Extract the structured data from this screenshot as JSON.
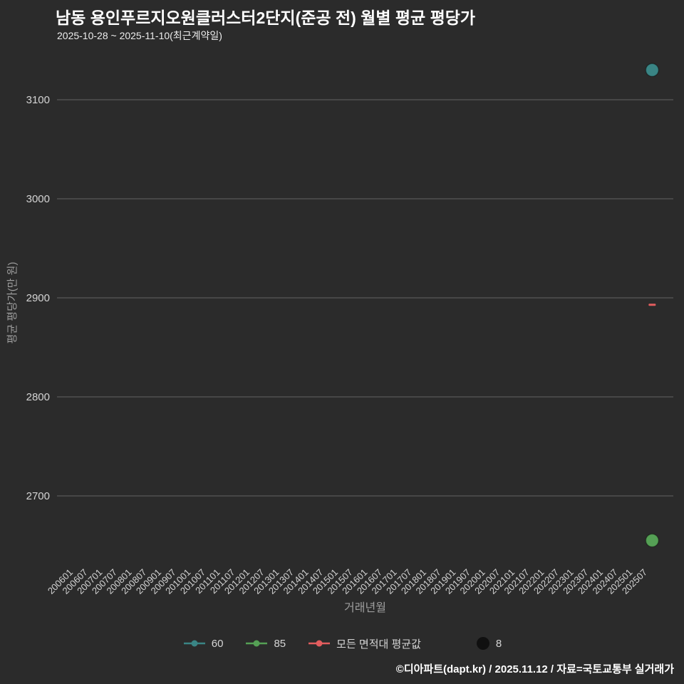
{
  "page": {
    "title": "남동 용인푸르지오원클러스터2단지(준공 전) 월별 평균 평당가",
    "subtitle": "2025-10-28 ~ 2025-11-10(최근계약일)",
    "footer": "©디아파트(dapt.kr) / 2025.11.12 / 자료=국토교통부 실거래가"
  },
  "colors": {
    "background": "#2b2b2b",
    "grid": "#636363",
    "title_text": "#ffffff",
    "tick_text": "#d4d4d4",
    "axis_title_text": "#9e9e9e",
    "series_60": "#3a8585",
    "series_85": "#55a055",
    "series_avg": "#e25d5e",
    "size_dot": "#101010"
  },
  "chart_data": {
    "type": "scatter",
    "title": "남동 용인푸르지오원클러스터2단지(준공 전) 월별 평균 평당가",
    "subtitle": "2025-10-28 ~ 2025-11-10(최근계약일)",
    "xlabel": "거래년월",
    "ylabel": "평균 평당가(만 원)",
    "ylim": [
      2630,
      3150
    ],
    "yticks": [
      2700,
      2800,
      2900,
      3000,
      3100
    ],
    "grid": "horizontal",
    "legend_position": "bottom",
    "xticks": [
      "200601",
      "200607",
      "200701",
      "200707",
      "200801",
      "200807",
      "200901",
      "200907",
      "201001",
      "201007",
      "201101",
      "201107",
      "201201",
      "201207",
      "201301",
      "201307",
      "201401",
      "201407",
      "201501",
      "201507",
      "201601",
      "201607",
      "201701",
      "201707",
      "201801",
      "201807",
      "201901",
      "201907",
      "202001",
      "202007",
      "202101",
      "202107",
      "202201",
      "202207",
      "202301",
      "202307",
      "202401",
      "202407",
      "202501",
      "202507"
    ],
    "series": [
      {
        "name": "60",
        "key": "60",
        "marker": "circle",
        "color_key": "series_60",
        "points": [
          {
            "x": "202510",
            "y": 3130,
            "size": 8
          }
        ]
      },
      {
        "name": "85",
        "key": "85",
        "marker": "circle",
        "color_key": "series_85",
        "points": [
          {
            "x": "202510",
            "y": 2655,
            "size": 8
          }
        ]
      },
      {
        "name": "모든 면적대 평균값",
        "key": "avg",
        "marker": "dash",
        "color_key": "series_avg",
        "points": [
          {
            "x": "202510",
            "y": 2893
          }
        ]
      }
    ],
    "size_legend": {
      "value": "8"
    }
  }
}
